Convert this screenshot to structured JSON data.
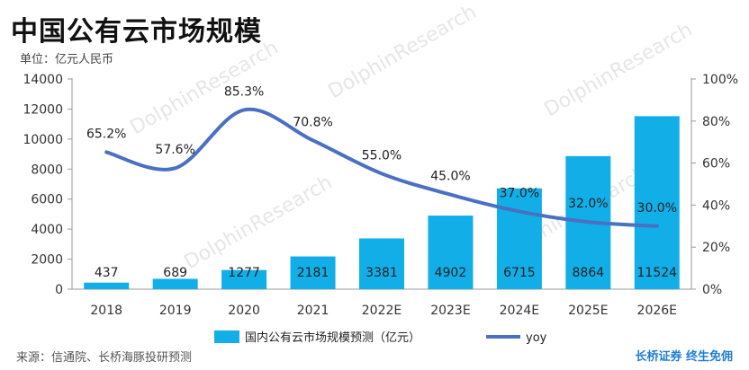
{
  "title": "中国公有云市场规模",
  "unit_label": "单位：亿元人民币",
  "source": "来源：信通院、长桥海豚投研预测",
  "brand": "长桥证券 终生免佣",
  "watermark": "DolphinResearch",
  "colors": {
    "bar": "#12aee8",
    "line": "#4a70c2",
    "axis": "#999999"
  },
  "chart_data": {
    "type": "bar",
    "categories": [
      "2018",
      "2019",
      "2020",
      "2021",
      "2022E",
      "2023E",
      "2024E",
      "2025E",
      "2026E"
    ],
    "series": [
      {
        "name": "国内公有云市场规模预测（亿元）",
        "type": "bar",
        "axis": "left",
        "values": [
          437,
          689,
          1277,
          2181,
          3381,
          4902,
          6715,
          8864,
          11524
        ],
        "labels": [
          "437",
          "689",
          "1277",
          "2181",
          "3381",
          "4902",
          "6715",
          "8864",
          "11524"
        ]
      },
      {
        "name": "yoy",
        "type": "line",
        "axis": "right",
        "values": [
          65.2,
          57.6,
          85.3,
          70.8,
          55.0,
          45.0,
          37.0,
          32.0,
          30.0
        ],
        "labels": [
          "65.2%",
          "57.6%",
          "85.3%",
          "70.8%",
          "55.0%",
          "45.0%",
          "37.0%",
          "32.0%",
          "30.0%"
        ]
      }
    ],
    "y_left": {
      "min": 0,
      "max": 14000,
      "ticks": [
        "0",
        "2000",
        "4000",
        "6000",
        "8000",
        "10000",
        "12000",
        "14000"
      ]
    },
    "y_right": {
      "min": 0,
      "max": 100,
      "ticks": [
        "0%",
        "20%",
        "40%",
        "60%",
        "80%",
        "100%"
      ]
    },
    "grid": false,
    "legend_position": "bottom"
  }
}
